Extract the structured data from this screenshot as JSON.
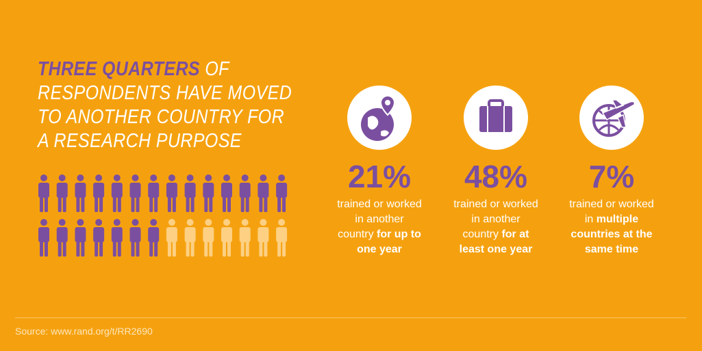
{
  "headline": {
    "highlight": "THREE QUARTERS",
    "lines": [
      " OF",
      "RESPONDENTS HAVE MOVED",
      "TO ANOTHER COUNTRY FOR",
      "A RESEARCH PURPOSE"
    ]
  },
  "stats": [
    {
      "percent": "21%",
      "lines": [
        {
          "plain": "trained or worked"
        },
        {
          "plain": "in another"
        },
        {
          "plain": "country ",
          "bold": "for up to"
        },
        {
          "bold": "one year"
        }
      ]
    },
    {
      "percent": "48%",
      "lines": [
        {
          "plain": "trained or worked"
        },
        {
          "plain": "in another"
        },
        {
          "plain": "country ",
          "bold": "for at"
        },
        {
          "bold": "least one year"
        }
      ]
    },
    {
      "percent": "7%",
      "lines": [
        {
          "plain": "trained or worked"
        },
        {
          "plain": "in ",
          "bold": "multiple"
        },
        {
          "bold": "countries at the"
        },
        {
          "bold": "same time"
        }
      ]
    }
  ],
  "source": "Source: www.rand.org/t/RR2690"
}
